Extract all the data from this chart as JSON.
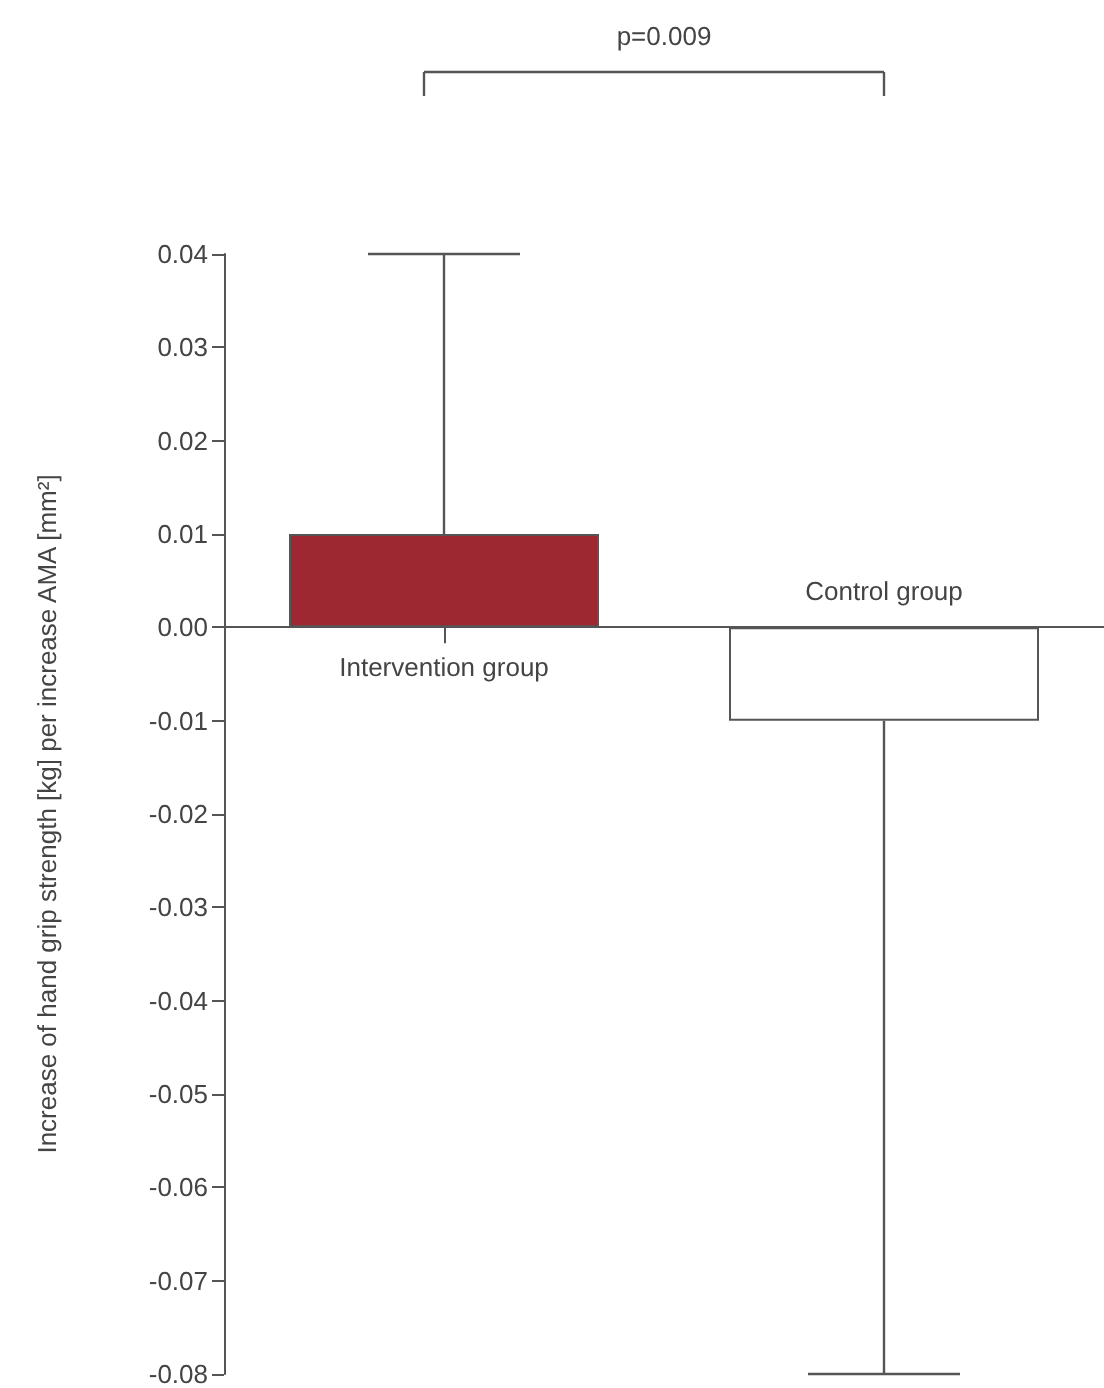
{
  "chart_data": {
    "type": "bar",
    "ylabel": "Increase of hand grip strength [kg] per increase AMA [mm²]",
    "categories": [
      "Intervention group",
      "Control group"
    ],
    "values": [
      0.01,
      -0.01
    ],
    "colors": [
      "#9e2832",
      "#ffffff"
    ],
    "errors": [
      [
        0.01,
        0.04
      ],
      [
        -0.08,
        -0.01
      ]
    ],
    "ylim": [
      -0.08,
      0.04
    ],
    "yticks": [
      0.04,
      0.03,
      0.02,
      0.01,
      {
        "value": 0,
        "label": "0.00"
      },
      -0.01,
      -0.02,
      -0.03,
      -0.04,
      -0.05,
      -0.06,
      -0.07,
      -0.08
    ],
    "annotations": [
      "p=0.009"
    ]
  }
}
